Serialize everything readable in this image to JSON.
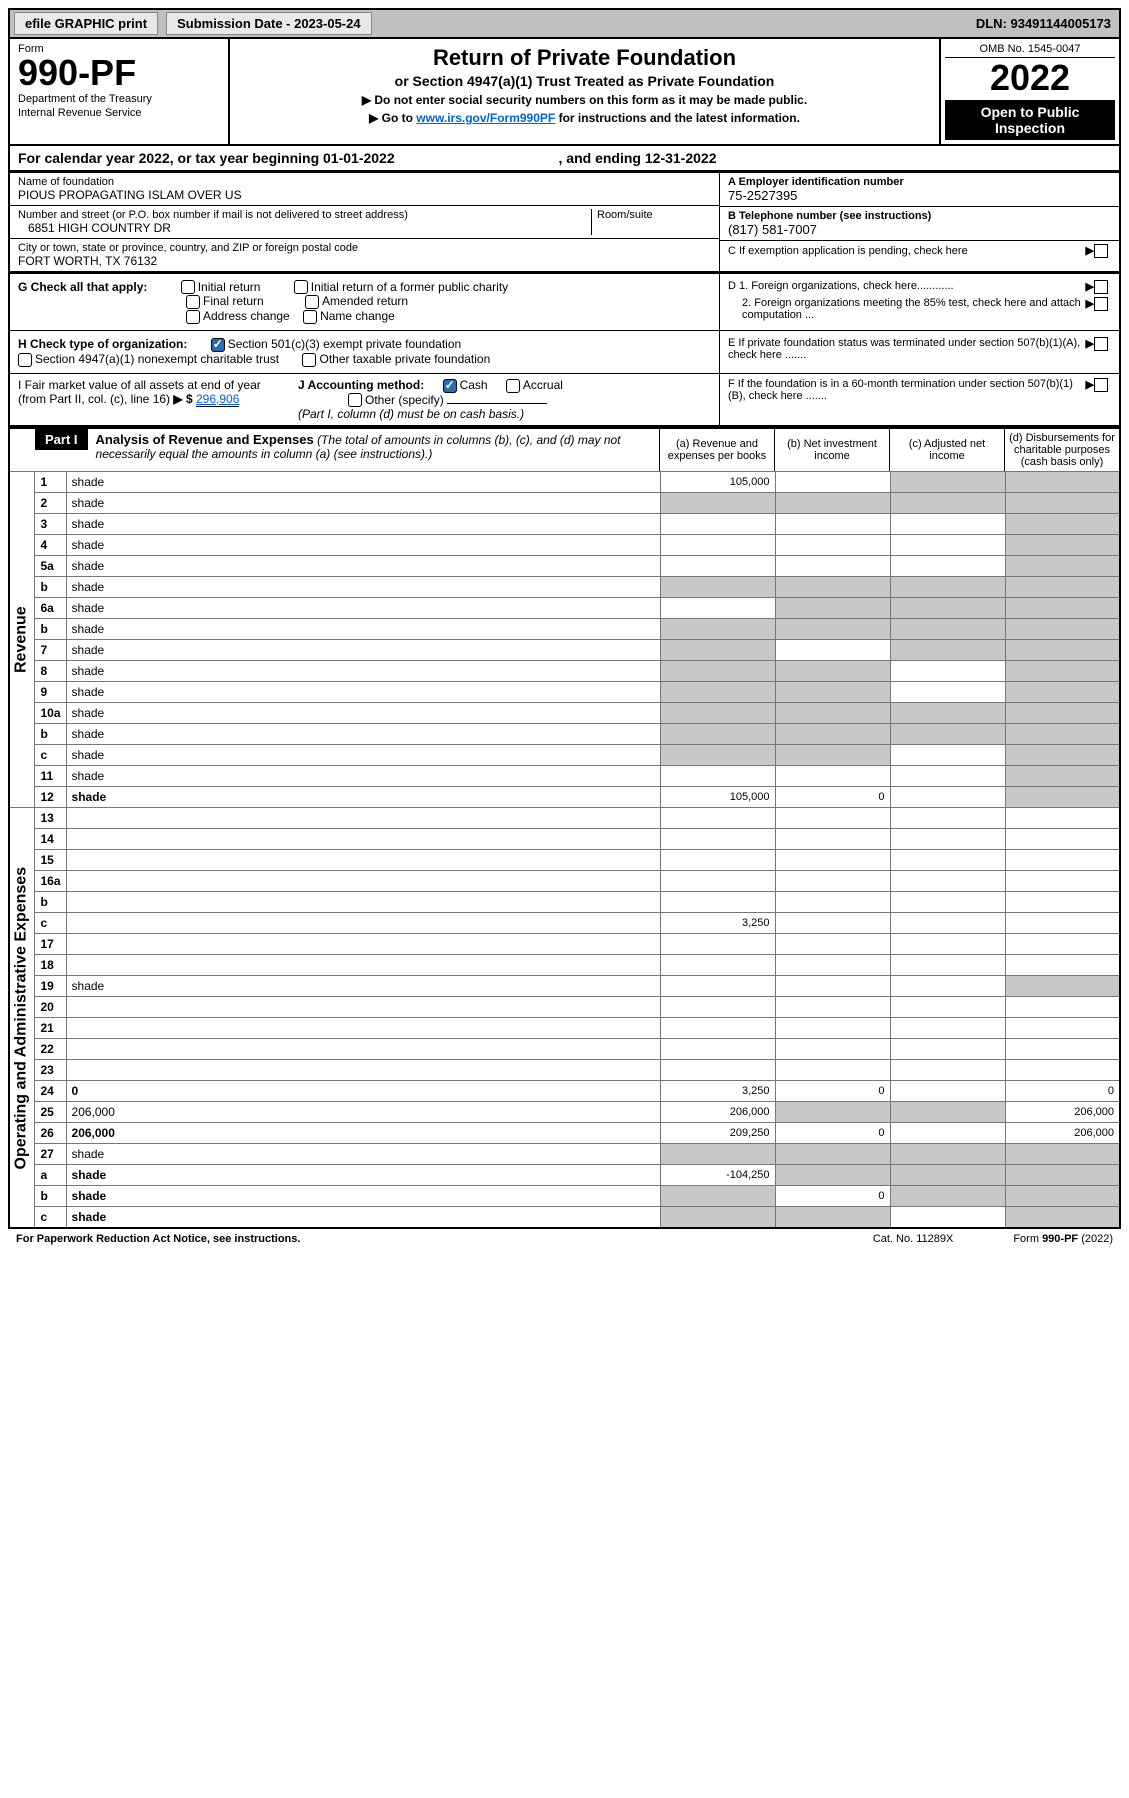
{
  "top_bar": {
    "efile_label": "efile GRAPHIC print",
    "submission_label": "Submission Date - 2023-05-24",
    "dln": "DLN: 93491144005173"
  },
  "header": {
    "form_label": "Form",
    "form_number": "990-PF",
    "dept": "Department of the Treasury",
    "irs": "Internal Revenue Service",
    "title": "Return of Private Foundation",
    "subtitle": "or Section 4947(a)(1) Trust Treated as Private Foundation",
    "instr1": "▶ Do not enter social security numbers on this form as it may be made public.",
    "instr2_pre": "▶ Go to ",
    "instr2_link": "www.irs.gov/Form990PF",
    "instr2_post": " for instructions and the latest information.",
    "omb": "OMB No. 1545-0047",
    "year": "2022",
    "open": "Open to Public Inspection"
  },
  "cal_year": {
    "text_pre": "For calendar year 2022, or tax year beginning ",
    "begin": "01-01-2022",
    "text_mid": " , and ending ",
    "end": "12-31-2022"
  },
  "ident": {
    "name_label": "Name of foundation",
    "name": "PIOUS PROPAGATING ISLAM OVER US",
    "addr_label": "Number and street (or P.O. box number if mail is not delivered to street address)",
    "addr": "6851 HIGH COUNTRY DR",
    "room_label": "Room/suite",
    "city_label": "City or town, state or province, country, and ZIP or foreign postal code",
    "city": "FORT WORTH, TX  76132",
    "ein_label": "A Employer identification number",
    "ein": "75-2527395",
    "phone_label": "B Telephone number (see instructions)",
    "phone": "(817) 581-7007",
    "pending_label": "C If exemption application is pending, check here"
  },
  "checks": {
    "g_label": "G Check all that apply:",
    "g_initial": "Initial return",
    "g_initial_pc": "Initial return of a former public charity",
    "g_final": "Final return",
    "g_amended": "Amended return",
    "g_addr": "Address change",
    "g_name": "Name change",
    "d1": "D 1. Foreign organizations, check here............",
    "d2": "2. Foreign organizations meeting the 85% test, check here and attach computation ...",
    "e": "E  If private foundation status was terminated under section 507(b)(1)(A), check here .......",
    "h_label": "H Check type of organization:",
    "h_501c3": "Section 501(c)(3) exempt private foundation",
    "h_4947": "Section 4947(a)(1) nonexempt charitable trust",
    "h_other_tax": "Other taxable private foundation",
    "i_label": "I Fair market value of all assets at end of year (from Part II, col. (c), line 16)",
    "i_val": "296,906",
    "j_label": "J Accounting method:",
    "j_cash": "Cash",
    "j_accrual": "Accrual",
    "j_other": "Other (specify)",
    "j_note": "(Part I, column (d) must be on cash basis.)",
    "f": "F  If the foundation is in a 60-month termination under section 507(b)(1)(B), check here ......."
  },
  "part1": {
    "label": "Part I",
    "title": "Analysis of Revenue and Expenses",
    "title_note": "(The total of amounts in columns (b), (c), and (d) may not necessarily equal the amounts in column (a) (see instructions).)",
    "col_a": "(a) Revenue and expenses per books",
    "col_b": "(b) Net investment income",
    "col_c": "(c) Adjusted net income",
    "col_d": "(d) Disbursements for charitable purposes (cash basis only)",
    "rotate_rev": "Revenue",
    "rotate_exp": "Operating and Administrative Expenses"
  },
  "rows": [
    {
      "n": "1",
      "d": "shade",
      "a": "105,000",
      "b": "",
      "c": "shade"
    },
    {
      "n": "2",
      "d": "shade",
      "a": "shade",
      "b": "shade",
      "c": "shade"
    },
    {
      "n": "3",
      "d": "shade",
      "a": "",
      "b": "",
      "c": ""
    },
    {
      "n": "4",
      "d": "shade",
      "a": "",
      "b": "",
      "c": ""
    },
    {
      "n": "5a",
      "d": "shade",
      "a": "",
      "b": "",
      "c": ""
    },
    {
      "n": "b",
      "d": "shade",
      "a": "shade",
      "b": "shade",
      "c": "shade"
    },
    {
      "n": "6a",
      "d": "shade",
      "a": "",
      "b": "shade",
      "c": "shade"
    },
    {
      "n": "b",
      "d": "shade",
      "a": "shade",
      "b": "shade",
      "c": "shade"
    },
    {
      "n": "7",
      "d": "shade",
      "a": "shade",
      "b": "",
      "c": "shade"
    },
    {
      "n": "8",
      "d": "shade",
      "a": "shade",
      "b": "shade",
      "c": ""
    },
    {
      "n": "9",
      "d": "shade",
      "a": "shade",
      "b": "shade",
      "c": ""
    },
    {
      "n": "10a",
      "d": "shade",
      "a": "shade",
      "b": "shade",
      "c": "shade"
    },
    {
      "n": "b",
      "d": "shade",
      "a": "shade",
      "b": "shade",
      "c": "shade"
    },
    {
      "n": "c",
      "d": "shade",
      "a": "shade",
      "b": "shade",
      "c": ""
    },
    {
      "n": "11",
      "d": "shade",
      "a": "",
      "b": "",
      "c": ""
    },
    {
      "n": "12",
      "d": "shade",
      "a": "105,000",
      "b": "0",
      "c": "",
      "bold": true
    },
    {
      "n": "13",
      "d": "",
      "a": "",
      "b": "",
      "c": ""
    },
    {
      "n": "14",
      "d": "",
      "a": "",
      "b": "",
      "c": ""
    },
    {
      "n": "15",
      "d": "",
      "a": "",
      "b": "",
      "c": ""
    },
    {
      "n": "16a",
      "d": "",
      "a": "",
      "b": "",
      "c": ""
    },
    {
      "n": "b",
      "d": "",
      "a": "",
      "b": "",
      "c": ""
    },
    {
      "n": "c",
      "d": "",
      "a": "3,250",
      "b": "",
      "c": ""
    },
    {
      "n": "17",
      "d": "",
      "a": "",
      "b": "",
      "c": ""
    },
    {
      "n": "18",
      "d": "",
      "a": "",
      "b": "",
      "c": ""
    },
    {
      "n": "19",
      "d": "shade",
      "a": "",
      "b": "",
      "c": ""
    },
    {
      "n": "20",
      "d": "",
      "a": "",
      "b": "",
      "c": ""
    },
    {
      "n": "21",
      "d": "",
      "a": "",
      "b": "",
      "c": ""
    },
    {
      "n": "22",
      "d": "",
      "a": "",
      "b": "",
      "c": ""
    },
    {
      "n": "23",
      "d": "",
      "a": "",
      "b": "",
      "c": ""
    },
    {
      "n": "24",
      "d": "0",
      "a": "3,250",
      "b": "0",
      "c": "",
      "bold": true
    },
    {
      "n": "25",
      "d": "206,000",
      "a": "206,000",
      "b": "shade",
      "c": "shade"
    },
    {
      "n": "26",
      "d": "206,000",
      "a": "209,250",
      "b": "0",
      "c": "",
      "bold": true
    },
    {
      "n": "27",
      "d": "shade",
      "a": "shade",
      "b": "shade",
      "c": "shade"
    },
    {
      "n": "a",
      "d": "shade",
      "a": "-104,250",
      "b": "shade",
      "c": "shade",
      "bold": true
    },
    {
      "n": "b",
      "d": "shade",
      "a": "shade",
      "b": "0",
      "c": "shade",
      "bold": true
    },
    {
      "n": "c",
      "d": "shade",
      "a": "shade",
      "b": "shade",
      "c": "",
      "bold": true
    }
  ],
  "footer": {
    "left": "For Paperwork Reduction Act Notice, see instructions.",
    "mid": "Cat. No. 11289X",
    "right": "Form 990-PF (2022)"
  }
}
